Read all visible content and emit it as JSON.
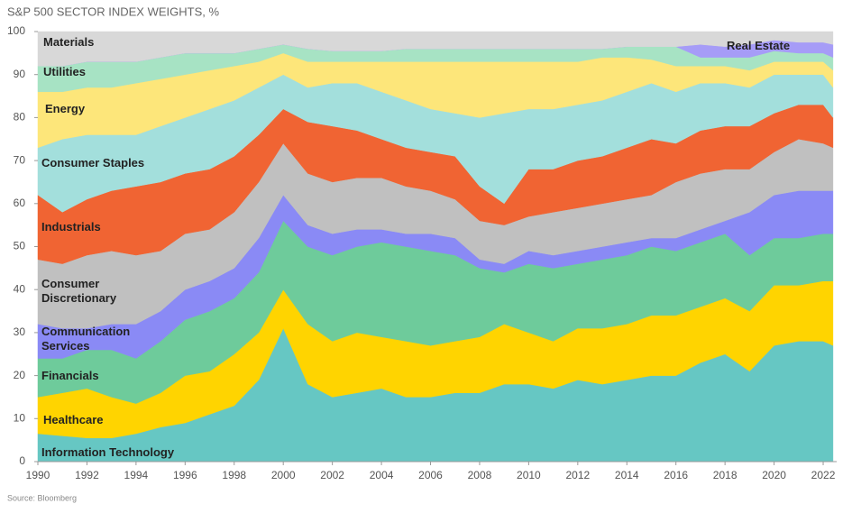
{
  "chart_data": {
    "type": "stacked_area",
    "title": "S&P 500 SECTOR INDEX WEIGHTS, %",
    "source": "Source: Bloomberg",
    "x": [
      1990,
      1991,
      1992,
      1993,
      1994,
      1995,
      1996,
      1997,
      1998,
      1999,
      2000,
      2001,
      2002,
      2003,
      2004,
      2005,
      2006,
      2007,
      2008,
      2009,
      2010,
      2011,
      2012,
      2013,
      2014,
      2015,
      2016,
      2017,
      2018,
      2019,
      2020,
      2021,
      2022,
      2022.4
    ],
    "xlim": [
      1990,
      2022.55
    ],
    "xticks": [
      1990,
      1992,
      1994,
      1996,
      1998,
      2000,
      2002,
      2004,
      2006,
      2008,
      2010,
      2012,
      2014,
      2016,
      2018,
      2020,
      2022
    ],
    "ylim": [
      0,
      100
    ],
    "yticks": [
      0,
      10,
      20,
      30,
      40,
      50,
      60,
      70,
      80,
      90,
      100
    ],
    "series": [
      {
        "name": "Information Technology",
        "color": "#66c7c3",
        "values": [
          6.5,
          6,
          5.5,
          5.5,
          6.5,
          8,
          9,
          11,
          13,
          19,
          31,
          18,
          15,
          16,
          17,
          15,
          15,
          16,
          16,
          18,
          18,
          17,
          19,
          18,
          19,
          20,
          20,
          23,
          25,
          21,
          27,
          28,
          28,
          27
        ]
      },
      {
        "name": "Healthcare",
        "color": "#ffd400",
        "values": [
          8.5,
          10,
          11.5,
          9.5,
          7,
          8,
          11,
          10,
          12,
          11,
          9,
          14,
          13,
          14,
          12,
          13,
          12,
          12,
          13,
          14,
          12,
          11,
          12,
          13,
          13,
          14,
          14,
          13,
          13,
          14,
          14,
          13,
          14,
          15
        ]
      },
      {
        "name": "Financials",
        "color": "#6ecb9b",
        "values": [
          9,
          8,
          9,
          11,
          10.5,
          12,
          13,
          14,
          13,
          14,
          16,
          18,
          20,
          20,
          22,
          22,
          22,
          20,
          16,
          12,
          16,
          17,
          15,
          16,
          16,
          16,
          15,
          15,
          15,
          13,
          11,
          11,
          11,
          11
        ]
      },
      {
        "name": "Communication Services",
        "color": "#8a8af5",
        "values": [
          8,
          7,
          5,
          6,
          8,
          7,
          7,
          7,
          7,
          8,
          6,
          5,
          5,
          4,
          3,
          3,
          4,
          4,
          2,
          2,
          3,
          3,
          3,
          3,
          3,
          2,
          3,
          3,
          3,
          10,
          10,
          11,
          10,
          10
        ]
      },
      {
        "name": "Consumer Discretionary",
        "color": "#c0c0c0",
        "values": [
          15,
          15,
          17,
          17,
          16,
          14,
          13,
          12,
          13,
          13,
          12,
          12,
          12,
          12,
          12,
          11,
          10,
          9,
          9,
          9,
          8,
          10,
          10,
          10,
          10,
          10,
          13,
          13,
          12,
          10,
          10,
          12,
          11,
          10
        ]
      },
      {
        "name": "Industrials",
        "color": "#f06433",
        "values": [
          15,
          12,
          13,
          14,
          16,
          16,
          14,
          14,
          13,
          11,
          8,
          12,
          13,
          11,
          9,
          9,
          9,
          10,
          8,
          5,
          11,
          10,
          11,
          11,
          12,
          13,
          9,
          10,
          10,
          10,
          9,
          8,
          9,
          7
        ]
      },
      {
        "name": "Consumer Staples",
        "color": "#a3dfdc",
        "values": [
          11,
          17,
          15,
          13,
          12,
          13,
          13,
          14,
          13,
          11,
          8,
          8,
          10,
          11,
          11,
          11,
          10,
          10,
          16,
          21,
          14,
          14,
          13,
          13,
          13,
          13,
          12,
          11,
          10,
          9,
          9,
          7,
          7,
          7
        ]
      },
      {
        "name": "Energy",
        "color": "#fde67a",
        "values": [
          13,
          11,
          11,
          11,
          12,
          11,
          10,
          9,
          8,
          6,
          5,
          6,
          5,
          5,
          7,
          9,
          11,
          12,
          13,
          12,
          11,
          11,
          10,
          10,
          8,
          5.5,
          6,
          4,
          4,
          4,
          3,
          3,
          3,
          4
        ]
      },
      {
        "name": "Utilities",
        "color": "#a7e3c4",
        "values": [
          6,
          6,
          6,
          6,
          5,
          5,
          5,
          4,
          3,
          3,
          2,
          3,
          2.5,
          2.5,
          2.5,
          3,
          3,
          3,
          3,
          3,
          3,
          3,
          3,
          2,
          2.5,
          3,
          4.5,
          2,
          2,
          3,
          2.5,
          2,
          2,
          3
        ]
      },
      {
        "name": "Real Estate",
        "color": "#a69cf7",
        "values": [
          0,
          0,
          0,
          0,
          0,
          0,
          0,
          0,
          0,
          0,
          0,
          0,
          0,
          0,
          0,
          0,
          0,
          0,
          0,
          0,
          0,
          0,
          0,
          0,
          0,
          0,
          0,
          3,
          2.5,
          3,
          2.5,
          2.5,
          2.5,
          3
        ]
      },
      {
        "name": "Materials",
        "color": "#d8d8d8",
        "values": [
          8,
          8,
          7,
          7,
          7,
          6,
          5,
          5,
          5,
          4,
          3,
          4,
          4.5,
          4.5,
          4.5,
          4,
          4,
          4,
          4,
          4,
          4,
          4,
          4,
          4,
          3.5,
          3.5,
          3.5,
          3,
          3.5,
          3,
          2,
          2.5,
          2.5,
          3
        ]
      }
    ]
  }
}
